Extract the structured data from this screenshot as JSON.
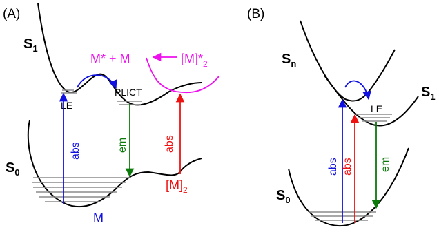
{
  "panel_a": {
    "tag": "(A)",
    "s1_base": "S",
    "s1_sub": "1",
    "s0_base": "S",
    "s0_sub": "0",
    "le_label": "LE",
    "plict_label": "PLICT",
    "abs_label": "abs",
    "em_label": "em",
    "abs_dimer_label": "abs",
    "m_label": "M",
    "dimer_base": "[M]",
    "dimer_sub": "2",
    "excimer_lhs": "M* + M",
    "excimer_rhs_base": "[M]*",
    "excimer_rhs_sub": "2"
  },
  "panel_b": {
    "tag": "(B)",
    "sn_base": "S",
    "sn_sub": "n",
    "s1_base": "S",
    "s1_sub": "1",
    "s0_base": "S",
    "s0_sub": "0",
    "le_label": "LE",
    "abs_blue_label": "abs",
    "abs_red_label": "abs",
    "em_label": "em"
  },
  "colors": {
    "blue": "#1010e0",
    "green": "#0a7a0a",
    "red": "#ee1111",
    "magenta": "#ee11ee",
    "black": "#000000",
    "level_gray": "#8c8c8c"
  }
}
